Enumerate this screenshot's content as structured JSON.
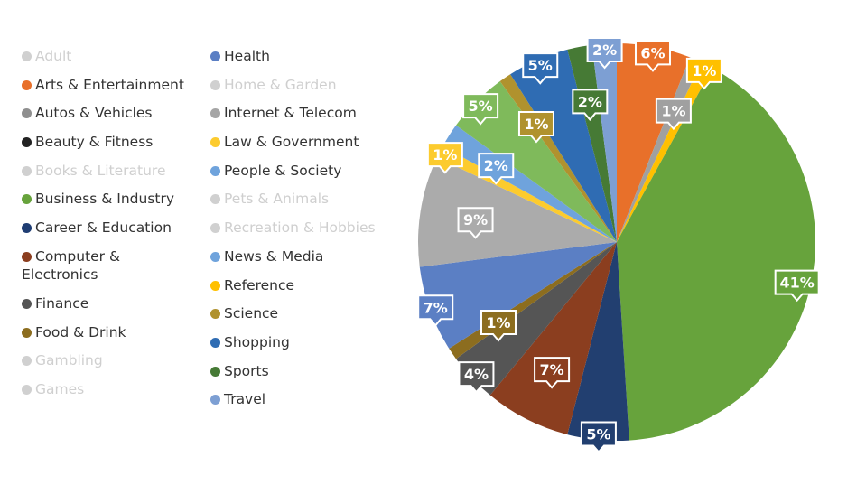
{
  "legend": {
    "left": [
      {
        "label": "Adult",
        "color": "#d0d0d0",
        "active": false
      },
      {
        "label": "Arts & Entertainment",
        "color": "#e8702a",
        "active": true
      },
      {
        "label": "Autos & Vehicles",
        "color": "#8f8f8f",
        "active": true
      },
      {
        "label": "Beauty & Fitness",
        "color": "#222222",
        "active": true
      },
      {
        "label": "Books & Literature",
        "color": "#d0d0d0",
        "active": false
      },
      {
        "label": "Business & Industry",
        "color": "#67a33c",
        "active": true
      },
      {
        "label": "Career & Education",
        "color": "#1f3d73",
        "active": true
      },
      {
        "label": "Computer & Electronics",
        "color": "#8b3e1f",
        "active": true
      },
      {
        "label": "Finance",
        "color": "#555555",
        "active": true
      },
      {
        "label": "Food & Drink",
        "color": "#8c6d1f",
        "active": true
      },
      {
        "label": "Gambling",
        "color": "#d0d0d0",
        "active": false
      },
      {
        "label": "Games",
        "color": "#d0d0d0",
        "active": false
      }
    ],
    "right": [
      {
        "label": "Health",
        "color": "#5b7fc4",
        "active": true
      },
      {
        "label": "Home & Garden",
        "color": "#d0d0d0",
        "active": false
      },
      {
        "label": "Internet & Telecom",
        "color": "#a5a5a5",
        "active": true
      },
      {
        "label": "Law & Government",
        "color": "#fccb2e",
        "active": true
      },
      {
        "label": "People & Society",
        "color": "#6fa3dc",
        "active": true
      },
      {
        "label": "Pets & Animals",
        "color": "#d0d0d0",
        "active": false
      },
      {
        "label": "Recreation & Hobbies",
        "color": "#d0d0d0",
        "active": false
      },
      {
        "label": "News & Media",
        "color": "#6fa3dc",
        "active": true
      },
      {
        "label": "Reference",
        "color": "#ffc000",
        "active": true
      },
      {
        "label": "Science",
        "color": "#b0922e",
        "active": true
      },
      {
        "label": "Shopping",
        "color": "#2f6cb3",
        "active": true
      },
      {
        "label": "Sports",
        "color": "#467a35",
        "active": true
      },
      {
        "label": "Travel",
        "color": "#7d9fd3",
        "active": true
      }
    ]
  },
  "chart_data": {
    "type": "pie",
    "title": "",
    "start": "top, clockwise",
    "slices": [
      {
        "name": "Arts & Entertainment",
        "value": 6,
        "label": "6%",
        "color": "#e8702a"
      },
      {
        "name": "Autos & Vehicles",
        "value": 1,
        "label": "1%",
        "color": "#a0a0a0"
      },
      {
        "name": "Reference",
        "value": 1,
        "label": "1%",
        "color": "#ffc000"
      },
      {
        "name": "Business & Industry",
        "value": 41,
        "label": "41%",
        "color": "#67a33c"
      },
      {
        "name": "Career & Education",
        "value": 5,
        "label": "5%",
        "color": "#223f70"
      },
      {
        "name": "Computer & Electronics",
        "value": 7,
        "label": "7%",
        "color": "#8b3e1f"
      },
      {
        "name": "Finance",
        "value": 4,
        "label": "4%",
        "color": "#555555"
      },
      {
        "name": "Food & Drink",
        "value": 1,
        "label": "1%",
        "color": "#8c6d1f"
      },
      {
        "name": "Health",
        "value": 7,
        "label": "7%",
        "color": "#5b7fc4"
      },
      {
        "name": "Internet & Telecom",
        "value": 9,
        "label": "9%",
        "color": "#ababab"
      },
      {
        "name": "Law & Government",
        "value": 1,
        "label": "1%",
        "color": "#fccb2e"
      },
      {
        "name": "People & Society",
        "value": 2,
        "label": "2%",
        "color": "#6fa3dc"
      },
      {
        "name": "News & Media",
        "value": 5,
        "label": "5%",
        "color": "#7fba5b"
      },
      {
        "name": "Science",
        "value": 1,
        "label": "1%",
        "color": "#b0922e"
      },
      {
        "name": "Shopping",
        "value": 5,
        "label": "5%",
        "color": "#2f6cb3"
      },
      {
        "name": "Sports",
        "value": 2,
        "label": "2%",
        "color": "#467a35"
      },
      {
        "name": "Travel",
        "value": 2,
        "label": "2%",
        "color": "#7d9fd3"
      }
    ]
  }
}
